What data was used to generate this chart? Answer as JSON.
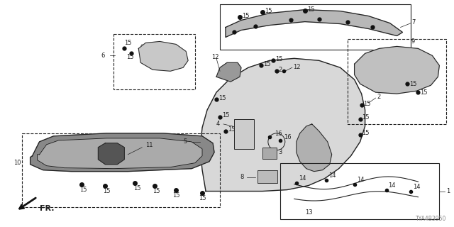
{
  "background_color": "#ffffff",
  "line_color": "#222222",
  "text_color": "#222222",
  "label_fontsize": 6.0,
  "part_code_text": "TYA4B3950",
  "fig_width": 6.4,
  "fig_height": 3.2,
  "dpi": 100
}
